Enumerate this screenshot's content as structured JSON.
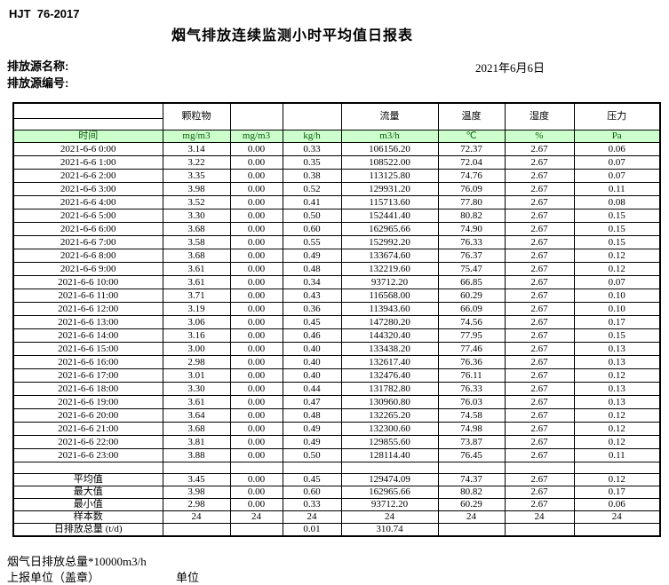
{
  "header": {
    "standard_code": "HJT  76-2017",
    "title": "烟气排放连续监测小时平均值日报表",
    "source_name_label": "排放源名称:",
    "source_code_label": "排放源编号:",
    "date": "2021年6月6日"
  },
  "table": {
    "group_headers": {
      "time": "",
      "particulate": "颗粒物",
      "col3": "",
      "col4": "",
      "flow": "流量",
      "temperature": "温度",
      "humidity": "湿度",
      "pressure": "压力"
    },
    "unit_row": {
      "time_label": "时间",
      "units": [
        "mg/m3",
        "mg/m3",
        "kg/h",
        "m3/h",
        "℃",
        "%",
        "Pa"
      ]
    },
    "rows": [
      {
        "time": "2021-6-6 0:00",
        "values": [
          "3.14",
          "0.00",
          "0.33",
          "106156.20",
          "72.37",
          "2.67",
          "0.06"
        ]
      },
      {
        "time": "2021-6-6 1:00",
        "values": [
          "3.22",
          "0.00",
          "0.35",
          "108522.00",
          "72.04",
          "2.67",
          "0.07"
        ]
      },
      {
        "time": "2021-6-6 2:00",
        "values": [
          "3.35",
          "0.00",
          "0.38",
          "113125.80",
          "74.76",
          "2.67",
          "0.07"
        ]
      },
      {
        "time": "2021-6-6 3:00",
        "values": [
          "3.98",
          "0.00",
          "0.52",
          "129931.20",
          "76.09",
          "2.67",
          "0.11"
        ]
      },
      {
        "time": "2021-6-6 4:00",
        "values": [
          "3.52",
          "0.00",
          "0.41",
          "115713.60",
          "77.80",
          "2.67",
          "0.08"
        ]
      },
      {
        "time": "2021-6-6 5:00",
        "values": [
          "3.30",
          "0.00",
          "0.50",
          "152441.40",
          "80.82",
          "2.67",
          "0.15"
        ]
      },
      {
        "time": "2021-6-6 6:00",
        "values": [
          "3.68",
          "0.00",
          "0.60",
          "162965.66",
          "74.90",
          "2.67",
          "0.15"
        ]
      },
      {
        "time": "2021-6-6 7:00",
        "values": [
          "3.58",
          "0.00",
          "0.55",
          "152992.20",
          "76.33",
          "2.67",
          "0.15"
        ]
      },
      {
        "time": "2021-6-6 8:00",
        "values": [
          "3.68",
          "0.00",
          "0.49",
          "133674.60",
          "76.37",
          "2.67",
          "0.12"
        ]
      },
      {
        "time": "2021-6-6 9:00",
        "values": [
          "3.61",
          "0.00",
          "0.48",
          "132219.60",
          "75.47",
          "2.67",
          "0.12"
        ]
      },
      {
        "time": "2021-6-6 10:00",
        "values": [
          "3.61",
          "0.00",
          "0.34",
          "93712.20",
          "66.85",
          "2.67",
          "0.07"
        ]
      },
      {
        "time": "2021-6-6 11:00",
        "values": [
          "3.71",
          "0.00",
          "0.43",
          "116568.00",
          "60.29",
          "2.67",
          "0.10"
        ]
      },
      {
        "time": "2021-6-6 12:00",
        "values": [
          "3.19",
          "0.00",
          "0.36",
          "113943.60",
          "66.09",
          "2.67",
          "0.10"
        ]
      },
      {
        "time": "2021-6-6 13:00",
        "values": [
          "3.06",
          "0.00",
          "0.45",
          "147280.20",
          "74.56",
          "2.67",
          "0.17"
        ]
      },
      {
        "time": "2021-6-6 14:00",
        "values": [
          "3.16",
          "0.00",
          "0.46",
          "144320.40",
          "77.95",
          "2.67",
          "0.15"
        ]
      },
      {
        "time": "2021-6-6 15:00",
        "values": [
          "3.00",
          "0.00",
          "0.40",
          "133438.20",
          "77.46",
          "2.67",
          "0.13"
        ]
      },
      {
        "time": "2021-6-6 16:00",
        "values": [
          "2.98",
          "0.00",
          "0.40",
          "132617.40",
          "76.36",
          "2.67",
          "0.13"
        ]
      },
      {
        "time": "2021-6-6 17:00",
        "values": [
          "3.01",
          "0.00",
          "0.40",
          "132476.40",
          "76.11",
          "2.67",
          "0.12"
        ]
      },
      {
        "time": "2021-6-6 18:00",
        "values": [
          "3.30",
          "0.00",
          "0.44",
          "131782.80",
          "76.33",
          "2.67",
          "0.13"
        ]
      },
      {
        "time": "2021-6-6 19:00",
        "values": [
          "3.61",
          "0.00",
          "0.47",
          "130960.80",
          "76.03",
          "2.67",
          "0.13"
        ]
      },
      {
        "time": "2021-6-6 20:00",
        "values": [
          "3.64",
          "0.00",
          "0.48",
          "132265.20",
          "74.58",
          "2.67",
          "0.12"
        ]
      },
      {
        "time": "2021-6-6 21:00",
        "values": [
          "3.68",
          "0.00",
          "0.49",
          "132300.60",
          "74.98",
          "2.67",
          "0.12"
        ]
      },
      {
        "time": "2021-6-6 22:00",
        "values": [
          "3.81",
          "0.00",
          "0.49",
          "129855.60",
          "73.87",
          "2.67",
          "0.12"
        ]
      },
      {
        "time": "2021-6-6 23:00",
        "values": [
          "3.88",
          "0.00",
          "0.50",
          "128114.40",
          "76.45",
          "2.67",
          "0.11"
        ]
      }
    ],
    "summary": [
      {
        "label": "平均值",
        "values": [
          "3.45",
          "0.00",
          "0.45",
          "129474.09",
          "74.37",
          "2.67",
          "0.12"
        ]
      },
      {
        "label": "最大值",
        "values": [
          "3.98",
          "0.00",
          "0.60",
          "162965.66",
          "80.82",
          "2.67",
          "0.17"
        ]
      },
      {
        "label": "最小值",
        "values": [
          "2.98",
          "0.00",
          "0.33",
          "93712.20",
          "60.29",
          "2.67",
          "0.06"
        ]
      },
      {
        "label": "样本数",
        "values": [
          "24",
          "24",
          "24",
          "24",
          "24",
          "24",
          "24"
        ]
      },
      {
        "label": "日排放总量 (t/d)",
        "values": [
          "",
          "",
          "0.01",
          "310.74",
          "",
          "",
          ""
        ]
      }
    ]
  },
  "footer": {
    "note": "烟气日排放总量*10000m3/h",
    "report_unit_label": "上报单位（盖章）",
    "unit_label": "单位"
  },
  "colors": {
    "unit_row_bg": "#ccffcc",
    "unit_row_text": "#0a5d0a",
    "border": "#000000"
  }
}
